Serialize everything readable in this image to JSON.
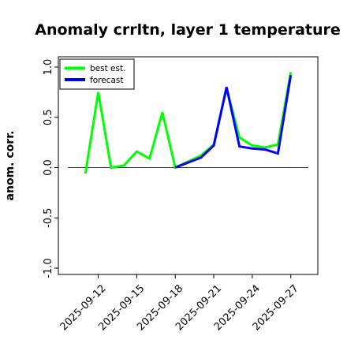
{
  "chart_data": {
    "type": "line",
    "title": "Anomaly crrltn, layer 1 temperature",
    "ylabel": "anom. corr.",
    "xlabel": "",
    "ylim": [
      -1.0,
      1.0
    ],
    "yticks": [
      "1.0",
      "0.5",
      "0.0",
      "-0.5",
      "-1.0"
    ],
    "ytick_values": [
      1.0,
      0.5,
      0.0,
      -0.5,
      -1.0
    ],
    "xlim": [
      "2025-09-10",
      "2025-09-28"
    ],
    "xticks": [
      "2025-09-12",
      "2025-09-15",
      "2025-09-18",
      "2025-09-21",
      "2025-09-24",
      "2025-09-27"
    ],
    "highlight_tick": "2025-09-18",
    "highlight_color": "#228B22",
    "reference_line": 0.0,
    "legend_position": "top-left",
    "series": [
      {
        "name": "best est.",
        "color": "#00ff00",
        "x": [
          "2025-09-11",
          "2025-09-12",
          "2025-09-13",
          "2025-09-14",
          "2025-09-15",
          "2025-09-16",
          "2025-09-17",
          "2025-09-18",
          "2025-09-19",
          "2025-09-20",
          "2025-09-21",
          "2025-09-22",
          "2025-09-23",
          "2025-09-24",
          "2025-09-25",
          "2025-09-26",
          "2025-09-27"
        ],
        "values": [
          -0.06,
          0.75,
          0.0,
          0.02,
          0.16,
          0.09,
          0.55,
          0.0,
          0.06,
          0.12,
          0.23,
          0.79,
          0.3,
          0.22,
          0.2,
          0.23,
          0.95
        ]
      },
      {
        "name": "forecast",
        "color": "#0000ff",
        "x": [
          "2025-09-18",
          "2025-09-19",
          "2025-09-20",
          "2025-09-21",
          "2025-09-22",
          "2025-09-23",
          "2025-09-24",
          "2025-09-25",
          "2025-09-26",
          "2025-09-27"
        ],
        "values": [
          0.0,
          0.05,
          0.1,
          0.22,
          0.8,
          0.21,
          0.19,
          0.18,
          0.14,
          0.92
        ]
      }
    ]
  }
}
